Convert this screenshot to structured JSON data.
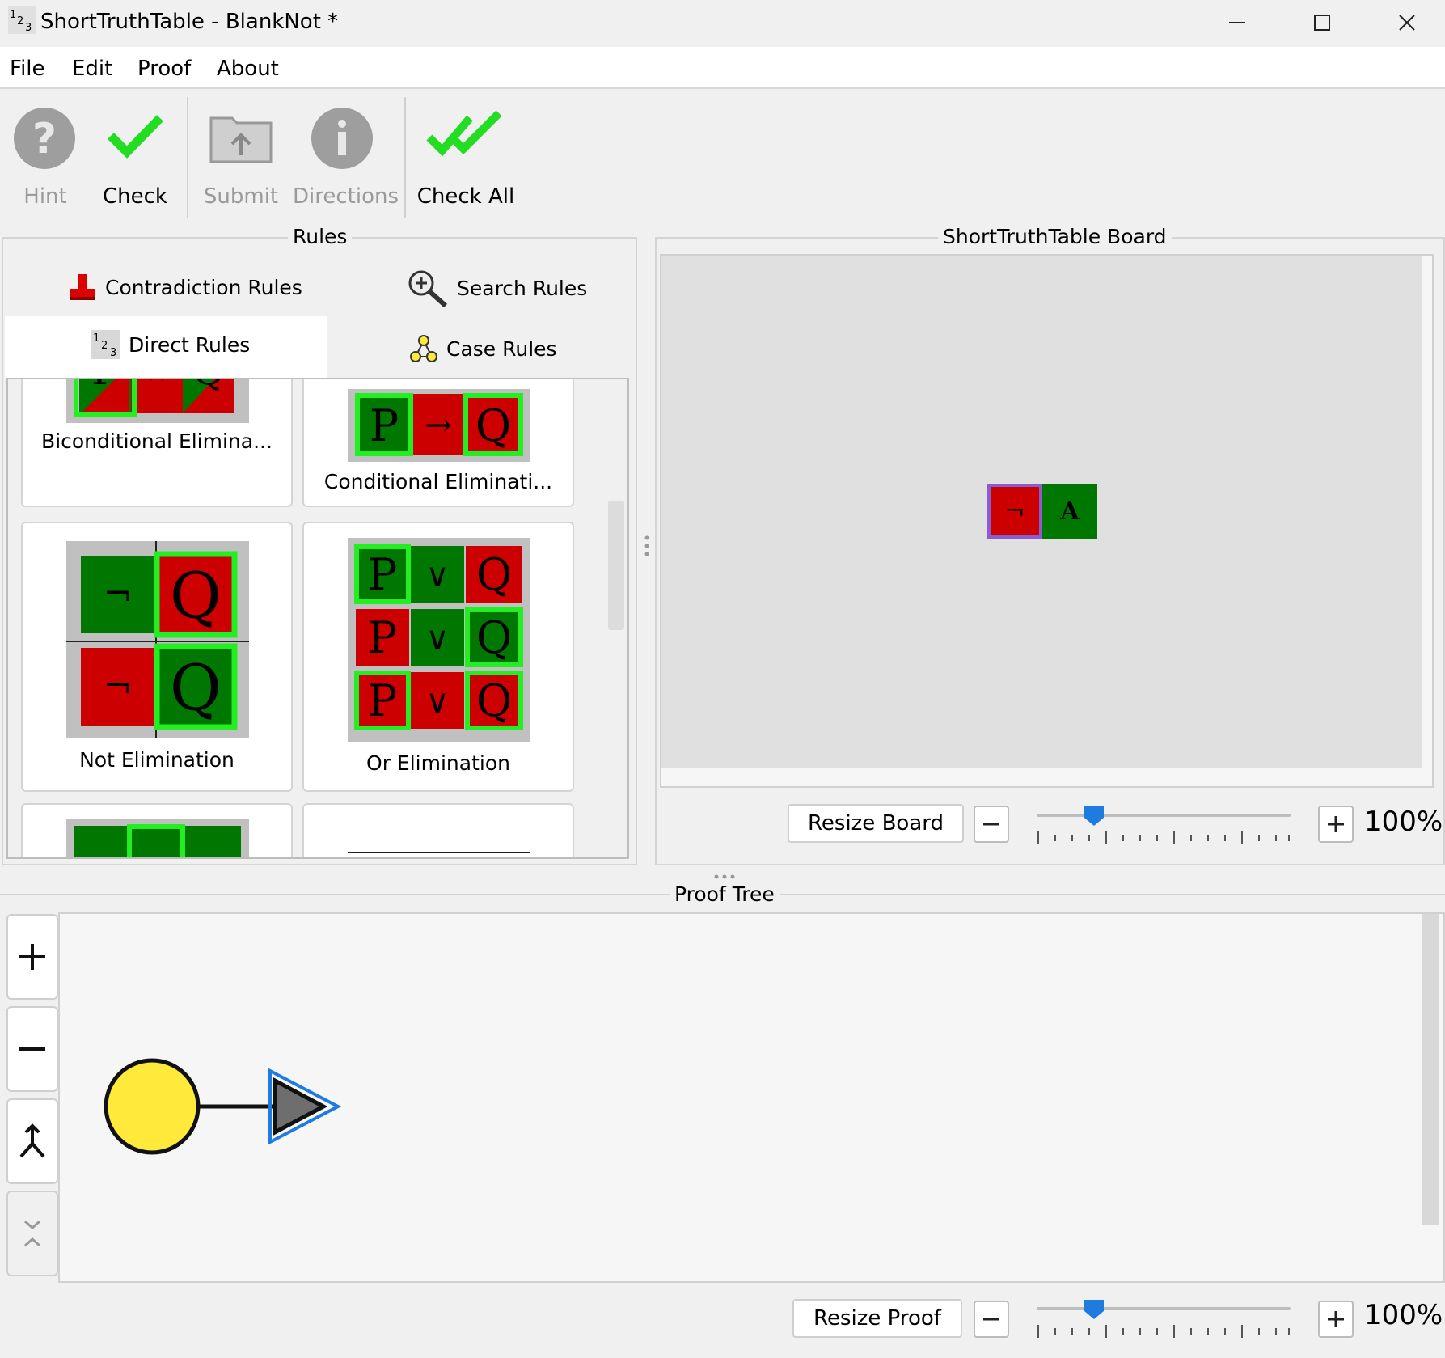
{
  "window": {
    "title": "ShortTruthTable - BlankNot *",
    "app_icon": "1-2-3-icon",
    "controls": [
      "minimize-icon",
      "maximize-icon",
      "close-icon"
    ]
  },
  "menu": {
    "items": [
      {
        "label": "File"
      },
      {
        "label": "Edit"
      },
      {
        "label": "Proof"
      },
      {
        "label": "About"
      }
    ]
  },
  "toolbar": {
    "hint": {
      "label": "Hint",
      "icon": "question-icon",
      "enabled": false
    },
    "check": {
      "label": "Check",
      "icon": "checkmark-icon",
      "enabled": true
    },
    "submit": {
      "label": "Submit",
      "icon": "upload-folder-icon",
      "enabled": false
    },
    "directions": {
      "label": "Directions",
      "icon": "info-icon",
      "enabled": false
    },
    "check_all": {
      "label": "Check All",
      "icon": "double-checkmark-icon",
      "enabled": true
    }
  },
  "rules_panel": {
    "title": "Rules",
    "tabs": [
      {
        "label": "Contradiction Rules",
        "icon": "contradiction-icon"
      },
      {
        "label": "Search Rules",
        "icon": "magnifier-icon"
      },
      {
        "label": "Direct Rules",
        "icon": "1-2-3-icon",
        "selected": true
      },
      {
        "label": "Case Rules",
        "icon": "case-tree-icon"
      }
    ],
    "rule_cards": [
      {
        "label": "Biconditional Elimina..."
      },
      {
        "label": "Conditional Eliminati..."
      },
      {
        "label": "Not Elimination"
      },
      {
        "label": "Or Elimination"
      }
    ],
    "tile_glyphs": {
      "p": "P",
      "q": "Q",
      "a": "A",
      "not": "¬",
      "or": "∨",
      "arrow": "→",
      "biarrow": "↔"
    }
  },
  "board_panel": {
    "title": "ShortTruthTable Board",
    "cells": [
      {
        "symbol": "¬",
        "color": "#cc0000"
      },
      {
        "symbol": "A",
        "color": "#007700"
      }
    ],
    "resize_label": "Resize Board",
    "zoom_text": "100%",
    "zoom_level": 0.2
  },
  "proof_panel": {
    "title": "Proof Tree",
    "side_buttons": [
      "plus-icon",
      "minus-icon",
      "merge-icon",
      "collapse-icon"
    ],
    "resize_label": "Resize Proof",
    "zoom_text": "100%",
    "zoom_level": 0.2
  },
  "colors": {
    "true_green": "#007700",
    "false_red": "#cc0000",
    "highlight": "#22ee22",
    "accent_blue": "#1e7be0",
    "node_yellow": "#ffe93b"
  }
}
